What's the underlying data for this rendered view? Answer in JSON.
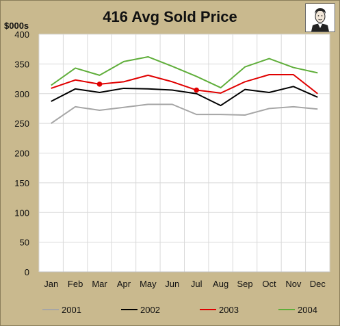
{
  "chart_data": {
    "type": "line",
    "title": "416 Avg Sold Price",
    "units_label": "$000s",
    "categories": [
      "Jan",
      "Feb",
      "Mar",
      "Apr",
      "May",
      "Jun",
      "Jul",
      "Aug",
      "Sep",
      "Oct",
      "Nov",
      "Dec"
    ],
    "ylim": [
      0,
      400
    ],
    "yticks": [
      0,
      50,
      100,
      150,
      200,
      250,
      300,
      350,
      400
    ],
    "grid": true,
    "legend_position": "bottom",
    "series": [
      {
        "name": "2001",
        "color": "#a6a6a6",
        "values": [
          250,
          278,
          272,
          277,
          282,
          282,
          265,
          265,
          264,
          275,
          278,
          274
        ]
      },
      {
        "name": "2002",
        "color": "#000000",
        "values": [
          287,
          308,
          302,
          309,
          308,
          306,
          300,
          280,
          307,
          302,
          312,
          294
        ]
      },
      {
        "name": "2003",
        "color": "#e00000",
        "values": [
          309,
          323,
          316,
          320,
          331,
          320,
          306,
          301,
          320,
          332,
          332,
          300
        ],
        "markers": [
          {
            "category": "Mar",
            "value": 316
          },
          {
            "category": "Jul",
            "value": 306
          }
        ]
      },
      {
        "name": "2004",
        "color": "#5fae3a",
        "values": [
          314,
          343,
          331,
          354,
          362,
          346,
          329,
          310,
          345,
          359,
          344,
          335
        ]
      }
    ]
  },
  "logo": {
    "icon": "portrait-icon"
  }
}
